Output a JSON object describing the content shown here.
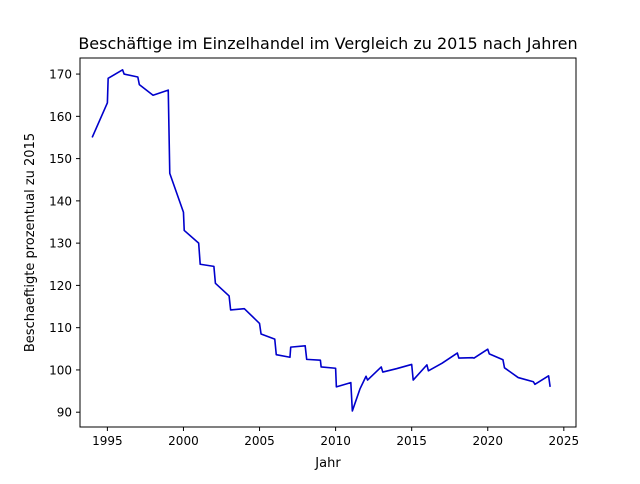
{
  "chart_data": {
    "type": "line",
    "title": "Beschäftige im Einzelhandel im Vergleich zu 2015 nach Jahren",
    "xlabel": "Jahr",
    "ylabel": "Beschaeftigte prozentual zu 2015",
    "xlim": [
      1993.2,
      2025.8
    ],
    "ylim": [
      86.5,
      173.8
    ],
    "xticks": [
      1995,
      2000,
      2005,
      2010,
      2015,
      2020,
      2025
    ],
    "yticks": [
      90,
      100,
      110,
      120,
      130,
      140,
      150,
      160,
      170
    ],
    "grid": false,
    "legend": null,
    "series": [
      {
        "color": "#0000cc",
        "x": [
          1994.0,
          1995.0,
          1995.05,
          1996.0,
          1996.1,
          1997.0,
          1997.1,
          1998.0,
          1999.0,
          1999.1,
          2000.0,
          2000.05,
          2001.0,
          2001.1,
          2002.0,
          2002.1,
          2003.0,
          2003.1,
          2004.0,
          2005.0,
          2005.1,
          2006.0,
          2006.1,
          2007.0,
          2007.05,
          2008.0,
          2008.1,
          2009.0,
          2009.05,
          2010.0,
          2010.05,
          2011.0,
          2011.1,
          2011.6,
          2012.0,
          2012.1,
          2013.0,
          2013.1,
          2014.0,
          2015.0,
          2015.1,
          2016.0,
          2016.1,
          2017.0,
          2018.0,
          2018.1,
          2019.0,
          2019.1,
          2020.0,
          2020.1,
          2021.0,
          2021.1,
          2022.0,
          2023.0,
          2023.1,
          2024.0,
          2024.1
        ],
        "y": [
          155.0,
          163.2,
          169.0,
          171.0,
          170.0,
          169.3,
          167.5,
          165.0,
          166.2,
          146.5,
          137.3,
          133.0,
          130.0,
          125.0,
          124.5,
          120.5,
          117.5,
          114.2,
          114.5,
          111.0,
          108.5,
          107.3,
          103.6,
          103.0,
          105.4,
          105.7,
          102.5,
          102.3,
          100.7,
          100.4,
          96.0,
          97.0,
          90.3,
          95.5,
          98.5,
          97.6,
          100.7,
          99.5,
          100.3,
          101.3,
          97.6,
          101.2,
          99.8,
          101.6,
          104.0,
          102.8,
          102.9,
          102.8,
          104.9,
          103.8,
          102.4,
          100.5,
          98.2,
          97.2,
          96.6,
          98.6,
          96.0
        ]
      }
    ]
  }
}
